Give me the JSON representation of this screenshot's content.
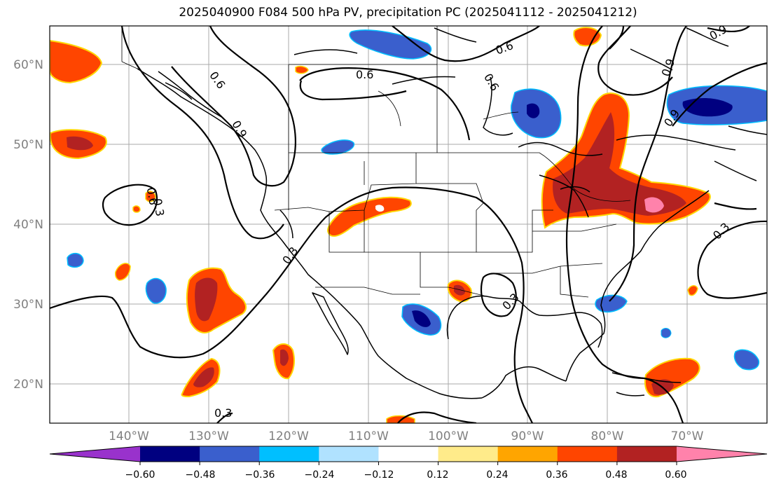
{
  "title": "2025040900 F084 500 hPa PV, precipitation PC (2025041112 - 2025041212)",
  "latitude_labels": [
    "60°N",
    "50°N",
    "40°N",
    "30°N",
    "20°N"
  ],
  "longitude_labels": [
    "140°W",
    "130°W",
    "120°W",
    "110°W",
    "100°W",
    "90°W",
    "80°W",
    "70°W"
  ],
  "contour_labels": [
    "0.6",
    "0.6",
    "0.6",
    "0.6",
    "0.9",
    "0.9",
    "0.9",
    "0.3",
    "0.3",
    "0.3",
    "0.3",
    "0.6",
    "0.3",
    "0.9"
  ],
  "colorbar": {
    "tick_labels": [
      "−0.60",
      "−0.48",
      "−0.36",
      "−0.24",
      "−0.12",
      "0.12",
      "0.24",
      "0.36",
      "0.48",
      "0.60"
    ],
    "colors": [
      "#9932cc",
      "#000080",
      "#3a5fcd",
      "#00bfff",
      "#b0e2ff",
      "#ffffff",
      "#ffeb8a",
      "#ffa500",
      "#ff4500",
      "#b22222",
      "#ff82ab"
    ]
  },
  "colors": {
    "neg_strong": "#000080",
    "neg_medium": "#3a5fcd",
    "neg_light": "#00bfff",
    "pos_light": "#ffd700",
    "pos_medium": "#ff4500",
    "pos_strong": "#b22222",
    "pos_extreme": "#ff82ab"
  }
}
